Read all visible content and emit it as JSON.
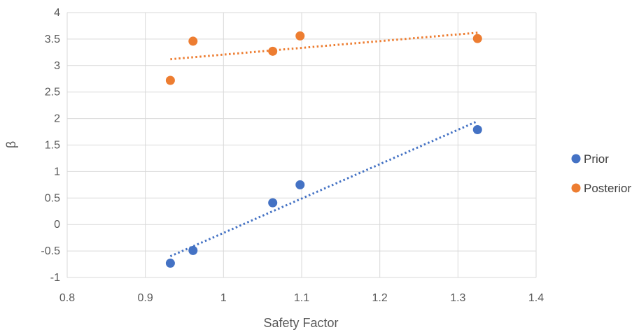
{
  "chart_data": {
    "type": "scatter",
    "title": "",
    "xlabel": "Safety Factor",
    "ylabel": "β",
    "xlim": [
      0.8,
      1.4
    ],
    "ylim": [
      -1,
      4
    ],
    "x_ticks": [
      "0.8",
      "0.9",
      "1",
      "1.1",
      "1.2",
      "1.3",
      "1.4"
    ],
    "y_ticks": [
      "-1",
      "-0.5",
      "0",
      "0.5",
      "1",
      "1.5",
      "2",
      "2.5",
      "3",
      "3.5",
      "4"
    ],
    "grid": true,
    "legend_position": "right",
    "series": [
      {
        "name": "Prior",
        "color": "#4472C4",
        "trendline": "linear-dotted",
        "points": [
          {
            "x": 0.932,
            "y": -0.73
          },
          {
            "x": 0.961,
            "y": -0.49
          },
          {
            "x": 1.063,
            "y": 0.41
          },
          {
            "x": 1.098,
            "y": 0.75
          },
          {
            "x": 1.325,
            "y": 1.79
          }
        ],
        "trend": {
          "x1": 0.932,
          "y1": -0.6,
          "x2": 1.325,
          "y2": 1.95
        }
      },
      {
        "name": "Posterior",
        "color": "#ED7D31",
        "trendline": "linear-dotted",
        "points": [
          {
            "x": 0.932,
            "y": 2.72
          },
          {
            "x": 0.961,
            "y": 3.46
          },
          {
            "x": 1.063,
            "y": 3.27
          },
          {
            "x": 1.098,
            "y": 3.56
          },
          {
            "x": 1.325,
            "y": 3.51
          }
        ],
        "trend": {
          "x1": 0.932,
          "y1": 3.12,
          "x2": 1.325,
          "y2": 3.62
        }
      }
    ]
  }
}
